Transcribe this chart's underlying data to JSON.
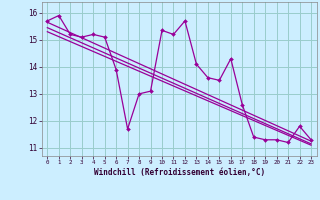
{
  "title": "",
  "xlabel": "Windchill (Refroidissement éolien,°C)",
  "background_color": "#cceeff",
  "line_color": "#990099",
  "grid_color": "#99cccc",
  "xlim": [
    -0.5,
    23.5
  ],
  "ylim": [
    10.7,
    16.4
  ],
  "yticks": [
    11,
    12,
    13,
    14,
    15,
    16
  ],
  "xticks": [
    0,
    1,
    2,
    3,
    4,
    5,
    6,
    7,
    8,
    9,
    10,
    11,
    12,
    13,
    14,
    15,
    16,
    17,
    18,
    19,
    20,
    21,
    22,
    23
  ],
  "series1_x": [
    0,
    1,
    2,
    3,
    4,
    5,
    6,
    7,
    8,
    9,
    10,
    11,
    12,
    13,
    14,
    15,
    16,
    17,
    18,
    19,
    20,
    21,
    22,
    23
  ],
  "series1_y": [
    15.7,
    15.9,
    15.2,
    15.1,
    15.2,
    15.1,
    13.9,
    11.7,
    13.0,
    13.1,
    15.35,
    15.2,
    15.7,
    14.1,
    13.6,
    13.5,
    14.3,
    12.6,
    11.4,
    11.3,
    11.3,
    11.2,
    11.8,
    11.3
  ],
  "trend1_x": [
    0,
    23
  ],
  "trend1_y": [
    15.65,
    11.25
  ],
  "trend2_x": [
    0,
    23
  ],
  "trend2_y": [
    15.45,
    11.15
  ],
  "trend3_x": [
    0,
    23
  ],
  "trend3_y": [
    15.3,
    11.1
  ]
}
